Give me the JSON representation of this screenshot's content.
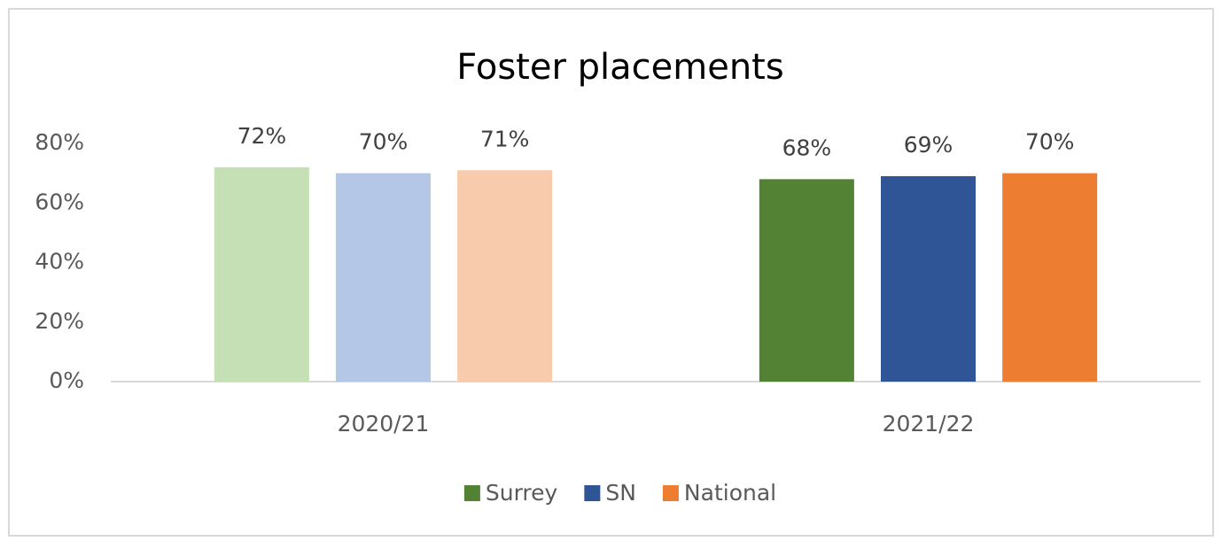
{
  "chart_data": {
    "type": "bar",
    "title": "Foster placements",
    "categories": [
      "2020/21",
      "2021/22"
    ],
    "series": [
      {
        "name": "Surrey",
        "color": "#548235",
        "colors": [
          "#c5e0b4",
          "#548235"
        ],
        "values": [
          72,
          68
        ],
        "value_labels": [
          "72%",
          "68%"
        ]
      },
      {
        "name": "SN",
        "color": "#2f5597",
        "colors": [
          "#b4c7e7",
          "#2f5597"
        ],
        "values": [
          70,
          69
        ],
        "value_labels": [
          "70%",
          "69%"
        ]
      },
      {
        "name": "National",
        "color": "#ed7d31",
        "colors": [
          "#f8cbad",
          "#ed7d31"
        ],
        "values": [
          71,
          70
        ],
        "value_labels": [
          "71%",
          "70%"
        ]
      }
    ],
    "ylim": [
      0,
      80
    ],
    "yticks": [
      {
        "value": 0,
        "label": "0%"
      },
      {
        "value": 20,
        "label": "20%"
      },
      {
        "value": 40,
        "label": "40%"
      },
      {
        "value": 60,
        "label": "60%"
      },
      {
        "value": 80,
        "label": "80%"
      }
    ],
    "grid": false,
    "legend": "bottom"
  }
}
